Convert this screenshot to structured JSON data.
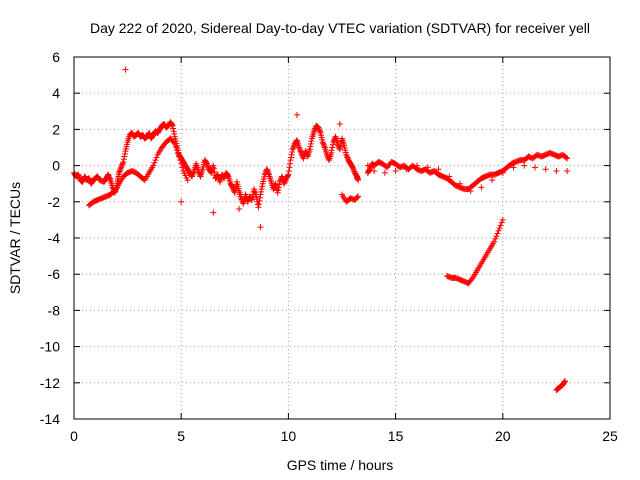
{
  "chart_data": {
    "type": "scatter",
    "title": "Day 222 of 2020, Sidereal Day-to-day VTEC variation (SDTVAR) for receiver yell",
    "xlabel": "GPS time / hours",
    "ylabel": "SDTVAR / TECUs",
    "xlim": [
      0,
      25
    ],
    "ylim": [
      -14,
      6
    ],
    "xticks": [
      0,
      5,
      10,
      15,
      20,
      25
    ],
    "yticks": [
      -14,
      -12,
      -10,
      -8,
      -6,
      -4,
      -2,
      0,
      2,
      4,
      6
    ],
    "grid": true,
    "marker": "+",
    "color": "#ff0000",
    "series": [
      {
        "name": "main-trace",
        "points": [
          [
            0.0,
            -0.4
          ],
          [
            0.1,
            -0.6
          ],
          [
            0.2,
            -0.5
          ],
          [
            0.3,
            -0.8
          ],
          [
            0.4,
            -0.9
          ],
          [
            0.5,
            -0.6
          ],
          [
            0.6,
            -0.8
          ],
          [
            0.7,
            -0.7
          ],
          [
            0.8,
            -1.0
          ],
          [
            0.9,
            -0.8
          ],
          [
            1.0,
            -0.7
          ],
          [
            1.1,
            -0.6
          ],
          [
            1.2,
            -0.8
          ],
          [
            1.4,
            -0.9
          ],
          [
            1.5,
            -0.7
          ],
          [
            1.6,
            -0.5
          ],
          [
            1.7,
            -0.8
          ],
          [
            1.8,
            -1.2
          ],
          [
            1.9,
            -1.5
          ],
          [
            2.0,
            -1.2
          ],
          [
            2.05,
            -0.8
          ],
          [
            2.1,
            -0.4
          ],
          [
            2.2,
            -0.1
          ],
          [
            2.3,
            0.2
          ],
          [
            2.4,
            0.8
          ],
          [
            2.5,
            1.3
          ],
          [
            2.6,
            1.7
          ],
          [
            2.7,
            1.8
          ],
          [
            2.8,
            1.6
          ],
          [
            2.9,
            1.7
          ],
          [
            3.0,
            1.8
          ],
          [
            3.1,
            1.6
          ],
          [
            3.2,
            1.7
          ],
          [
            3.3,
            1.5
          ],
          [
            3.4,
            1.6
          ],
          [
            3.5,
            1.8
          ],
          [
            3.6,
            1.5
          ],
          [
            3.7,
            1.7
          ],
          [
            3.8,
            1.9
          ],
          [
            3.9,
            1.8
          ],
          [
            4.0,
            2.0
          ],
          [
            4.1,
            2.2
          ],
          [
            4.2,
            2.3
          ],
          [
            4.3,
            2.1
          ],
          [
            4.4,
            2.2
          ],
          [
            4.5,
            2.4
          ],
          [
            4.6,
            2.2
          ],
          [
            4.7,
            1.6
          ],
          [
            4.8,
            1.1
          ],
          [
            4.9,
            0.6
          ],
          [
            5.0,
            0.4
          ],
          [
            5.1,
            0.2
          ],
          [
            5.2,
            0.0
          ],
          [
            5.3,
            -0.2
          ],
          [
            5.4,
            -0.4
          ],
          [
            5.5,
            -0.6
          ],
          [
            5.6,
            -0.3
          ],
          [
            5.7,
            0.1
          ],
          [
            5.8,
            -0.3
          ],
          [
            5.9,
            -0.6
          ],
          [
            6.0,
            -0.2
          ],
          [
            6.1,
            0.3
          ],
          [
            6.2,
            0.1
          ],
          [
            6.3,
            -0.2
          ],
          [
            6.4,
            -0.4
          ],
          [
            6.5,
            0.0
          ],
          [
            6.6,
            -0.7
          ],
          [
            6.7,
            -0.5
          ],
          [
            6.8,
            -0.9
          ],
          [
            6.9,
            -0.5
          ],
          [
            7.0,
            -0.7
          ],
          [
            7.1,
            -0.4
          ],
          [
            7.2,
            -0.6
          ],
          [
            7.3,
            -1.0
          ],
          [
            7.4,
            -1.2
          ],
          [
            7.5,
            -1.5
          ],
          [
            7.6,
            -0.9
          ],
          [
            7.7,
            -1.4
          ],
          [
            7.8,
            -1.8
          ],
          [
            7.9,
            -2.1
          ],
          [
            8.0,
            -1.6
          ],
          [
            8.1,
            -2.0
          ],
          [
            8.2,
            -1.7
          ],
          [
            8.3,
            -1.9
          ],
          [
            8.4,
            -1.3
          ],
          [
            8.5,
            -1.7
          ],
          [
            8.6,
            -2.3
          ],
          [
            8.7,
            -1.6
          ],
          [
            8.8,
            -1.0
          ],
          [
            8.9,
            -0.5
          ],
          [
            9.0,
            -0.2
          ],
          [
            9.1,
            -0.5
          ],
          [
            9.2,
            -0.9
          ],
          [
            9.3,
            -1.3
          ],
          [
            9.4,
            -1.0
          ],
          [
            9.5,
            -1.5
          ],
          [
            9.6,
            -0.9
          ],
          [
            9.7,
            -0.6
          ],
          [
            9.8,
            -1.0
          ],
          [
            9.9,
            -0.7
          ],
          [
            10.0,
            -0.5
          ],
          [
            10.1,
            0.3
          ],
          [
            10.2,
            0.9
          ],
          [
            10.3,
            1.2
          ],
          [
            10.4,
            1.4
          ],
          [
            10.5,
            1.0
          ],
          [
            10.6,
            0.7
          ],
          [
            10.7,
            0.4
          ],
          [
            10.8,
            0.8
          ],
          [
            10.9,
            0.5
          ],
          [
            11.0,
            0.9
          ],
          [
            11.1,
            1.5
          ],
          [
            11.2,
            1.9
          ],
          [
            11.3,
            2.2
          ],
          [
            11.4,
            2.1
          ],
          [
            11.5,
            1.8
          ],
          [
            11.6,
            1.3
          ],
          [
            11.7,
            1.0
          ],
          [
            11.8,
            0.6
          ],
          [
            11.9,
            0.3
          ],
          [
            12.0,
            0.7
          ],
          [
            12.1,
            1.3
          ],
          [
            12.2,
            1.6
          ],
          [
            12.3,
            1.2
          ],
          [
            12.4,
            0.9
          ],
          [
            12.5,
            1.5
          ],
          [
            12.6,
            1.1
          ],
          [
            12.7,
            0.6
          ],
          [
            12.8,
            0.3
          ],
          [
            12.9,
            0.1
          ],
          [
            13.0,
            -0.1
          ],
          [
            13.1,
            -0.4
          ],
          [
            13.2,
            -0.6
          ],
          [
            13.25,
            -0.8
          ],
          [
            13.7,
            -0.4
          ],
          [
            13.8,
            -0.2
          ],
          [
            13.9,
            0.1
          ],
          [
            14.0,
            0.0
          ],
          [
            14.2,
            0.2
          ],
          [
            14.4,
            0.1
          ],
          [
            14.6,
            -0.1
          ],
          [
            14.8,
            0.2
          ],
          [
            15.0,
            0.1
          ],
          [
            15.2,
            -0.1
          ],
          [
            15.4,
            0.0
          ],
          [
            15.6,
            -0.2
          ],
          [
            15.8,
            0.0
          ],
          [
            16.0,
            -0.2
          ],
          [
            16.2,
            -0.3
          ],
          [
            16.4,
            -0.2
          ],
          [
            16.6,
            -0.4
          ],
          [
            16.8,
            -0.3
          ],
          [
            17.0,
            -0.5
          ],
          [
            17.2,
            -0.6
          ],
          [
            17.4,
            -0.7
          ],
          [
            17.6,
            -0.9
          ],
          [
            17.8,
            -1.1
          ],
          [
            18.0,
            -1.2
          ],
          [
            18.2,
            -1.3
          ],
          [
            18.4,
            -1.3
          ],
          [
            18.6,
            -1.1
          ],
          [
            18.8,
            -0.9
          ],
          [
            19.0,
            -0.7
          ],
          [
            19.2,
            -0.6
          ],
          [
            19.4,
            -0.5
          ],
          [
            19.6,
            -0.5
          ],
          [
            19.8,
            -0.4
          ],
          [
            20.0,
            -0.3
          ],
          [
            20.2,
            -0.1
          ],
          [
            20.4,
            0.1
          ],
          [
            20.6,
            0.2
          ],
          [
            20.8,
            0.3
          ],
          [
            21.0,
            0.3
          ],
          [
            21.2,
            0.5
          ],
          [
            21.4,
            0.4
          ],
          [
            21.6,
            0.6
          ],
          [
            21.8,
            0.5
          ],
          [
            22.0,
            0.6
          ],
          [
            22.2,
            0.7
          ],
          [
            22.4,
            0.6
          ],
          [
            22.6,
            0.5
          ],
          [
            22.8,
            0.6
          ],
          [
            23.0,
            0.4
          ]
        ]
      },
      {
        "name": "lower-arcs",
        "points": [
          [
            0.7,
            -2.2
          ],
          [
            0.9,
            -2.0
          ],
          [
            1.1,
            -1.9
          ],
          [
            1.3,
            -1.8
          ],
          [
            1.5,
            -1.7
          ],
          [
            1.7,
            -1.6
          ],
          [
            1.9,
            -1.4
          ],
          [
            2.1,
            -1.0
          ],
          [
            2.3,
            -0.6
          ],
          [
            2.5,
            -0.4
          ],
          [
            2.7,
            -0.3
          ],
          [
            2.9,
            -0.4
          ],
          [
            3.1,
            -0.6
          ],
          [
            3.3,
            -0.8
          ],
          [
            3.5,
            -0.4
          ],
          [
            3.7,
            0.0
          ],
          [
            3.9,
            0.6
          ],
          [
            4.1,
            1.0
          ],
          [
            4.3,
            1.3
          ],
          [
            4.5,
            1.5
          ],
          [
            4.7,
            1.2
          ],
          [
            4.9,
            0.5
          ],
          [
            5.1,
            -0.3
          ],
          [
            5.3,
            -0.8
          ],
          [
            12.5,
            -1.6
          ],
          [
            12.7,
            -2.0
          ],
          [
            12.9,
            -1.8
          ],
          [
            13.1,
            -1.9
          ],
          [
            13.25,
            -1.7
          ],
          [
            13.7,
            0.0
          ],
          [
            14.0,
            -0.3
          ],
          [
            14.5,
            -0.4
          ],
          [
            15.0,
            -0.3
          ],
          [
            15.5,
            -0.2
          ],
          [
            16.0,
            0.0
          ],
          [
            16.5,
            -0.1
          ],
          [
            17.0,
            -0.2
          ],
          [
            17.5,
            -0.6
          ],
          [
            18.0,
            -1.0
          ],
          [
            18.5,
            -1.4
          ],
          [
            19.0,
            -1.2
          ],
          [
            19.5,
            -0.8
          ],
          [
            20.0,
            -0.4
          ],
          [
            20.5,
            -0.1
          ],
          [
            21.0,
            0.0
          ],
          [
            21.5,
            -0.1
          ],
          [
            22.0,
            -0.2
          ],
          [
            22.5,
            -0.3
          ],
          [
            23.0,
            -0.3
          ]
        ]
      },
      {
        "name": "low-segment",
        "points": [
          [
            17.4,
            -6.1
          ],
          [
            17.6,
            -6.2
          ],
          [
            17.8,
            -6.2
          ],
          [
            18.0,
            -6.3
          ],
          [
            18.2,
            -6.4
          ],
          [
            18.4,
            -6.5
          ],
          [
            18.6,
            -6.2
          ],
          [
            18.8,
            -5.8
          ],
          [
            19.0,
            -5.4
          ],
          [
            19.2,
            -5.0
          ],
          [
            19.4,
            -4.6
          ],
          [
            19.6,
            -4.2
          ],
          [
            19.8,
            -3.6
          ],
          [
            20.0,
            -3.0
          ]
        ]
      },
      {
        "name": "end-segment",
        "points": [
          [
            22.5,
            -12.4
          ],
          [
            22.6,
            -12.3
          ],
          [
            22.7,
            -12.2
          ],
          [
            22.8,
            -12.1
          ],
          [
            22.9,
            -11.9
          ]
        ]
      },
      {
        "name": "outliers",
        "points": [
          [
            2.4,
            5.3
          ],
          [
            8.7,
            -3.4
          ],
          [
            6.5,
            -2.6
          ],
          [
            7.7,
            -2.4
          ],
          [
            10.4,
            2.8
          ],
          [
            12.4,
            2.3
          ],
          [
            13.2,
            -0.7
          ],
          [
            5.0,
            -2.0
          ]
        ]
      }
    ]
  }
}
